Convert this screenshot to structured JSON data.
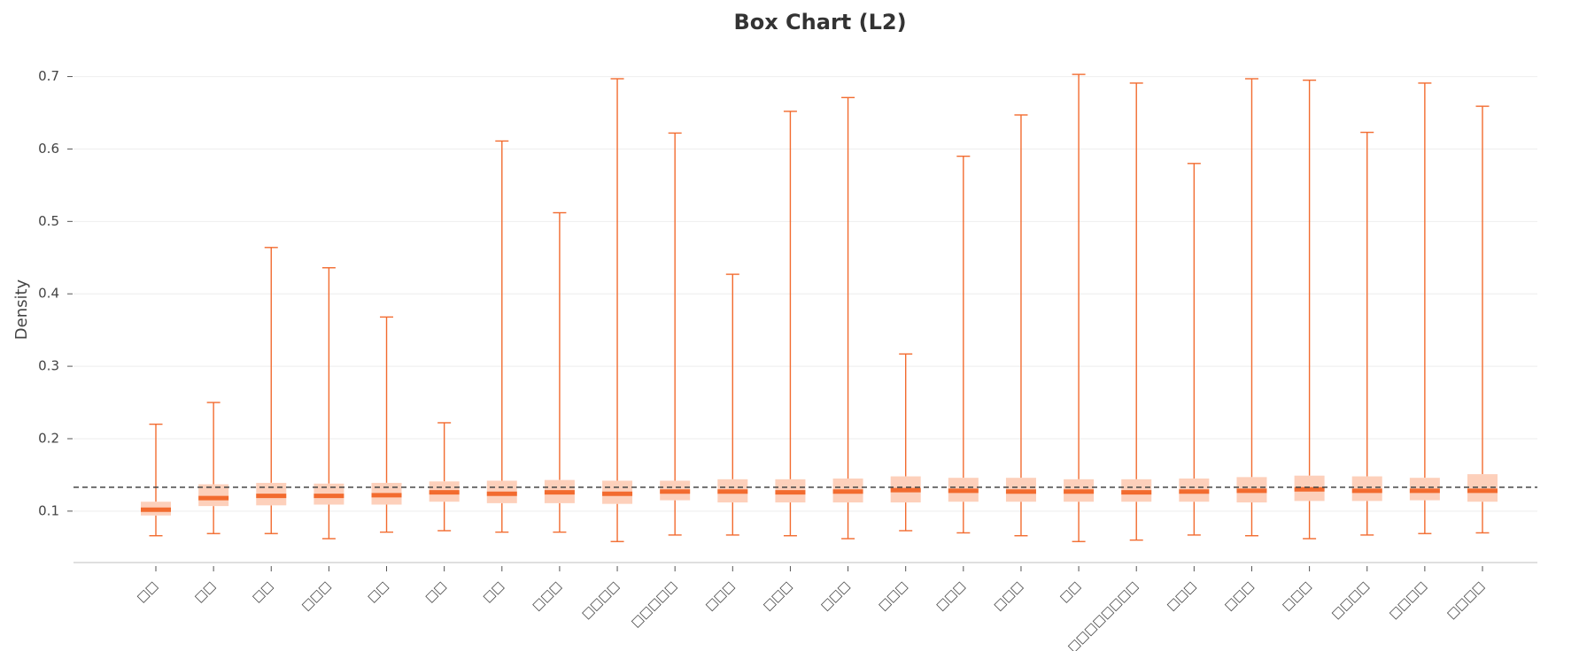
{
  "chart_data": {
    "type": "box",
    "title": "Box Chart (L2)",
    "y_label": "Density",
    "categories": [
      "□□",
      "□□",
      "□□",
      "□□□",
      "□□",
      "□□",
      "□□",
      "□□□",
      "□□□□",
      "□□□□□",
      "□□□",
      "□□□",
      "□□□",
      "□□□",
      "□□□",
      "□□□",
      "□□",
      "□□□□□□□□",
      "□□□",
      "□□□",
      "□□□",
      "□□□□",
      "□□□□",
      "□□□□"
    ],
    "low": [
      0.066,
      0.069,
      0.069,
      0.062,
      0.071,
      0.073,
      0.071,
      0.071,
      0.058,
      0.067,
      0.067,
      0.066,
      0.062,
      0.073,
      0.07,
      0.066,
      0.058,
      0.06,
      0.067,
      0.066,
      0.062,
      0.067,
      0.069,
      0.07
    ],
    "q1": [
      0.094,
      0.107,
      0.108,
      0.109,
      0.109,
      0.113,
      0.111,
      0.111,
      0.11,
      0.115,
      0.112,
      0.112,
      0.112,
      0.112,
      0.113,
      0.113,
      0.113,
      0.113,
      0.113,
      0.112,
      0.114,
      0.114,
      0.115,
      0.113
    ],
    "median": [
      0.102,
      0.118,
      0.121,
      0.121,
      0.122,
      0.126,
      0.124,
      0.126,
      0.124,
      0.127,
      0.127,
      0.126,
      0.127,
      0.129,
      0.128,
      0.127,
      0.127,
      0.126,
      0.127,
      0.128,
      0.13,
      0.128,
      0.128,
      0.128
    ],
    "q3": [
      0.113,
      0.137,
      0.139,
      0.138,
      0.139,
      0.141,
      0.142,
      0.143,
      0.142,
      0.142,
      0.144,
      0.144,
      0.145,
      0.148,
      0.146,
      0.146,
      0.144,
      0.144,
      0.145,
      0.147,
      0.149,
      0.148,
      0.146,
      0.151
    ],
    "high": [
      0.22,
      0.25,
      0.464,
      0.436,
      0.368,
      0.222,
      0.611,
      0.512,
      0.697,
      0.622,
      0.427,
      0.652,
      0.671,
      0.317,
      0.59,
      0.647,
      0.703,
      0.691,
      0.58,
      0.697,
      0.695,
      0.623,
      0.691,
      0.659
    ],
    "reference_line": 0.133,
    "box_color": "#fdd0bb",
    "line_color": "#f26b2f",
    "reference_color": "#444444",
    "ylim": [
      0.029,
      0.73
    ],
    "yticks": [
      0.1,
      0.2,
      0.3,
      0.4,
      0.5,
      0.6,
      0.7
    ],
    "grid": true
  }
}
